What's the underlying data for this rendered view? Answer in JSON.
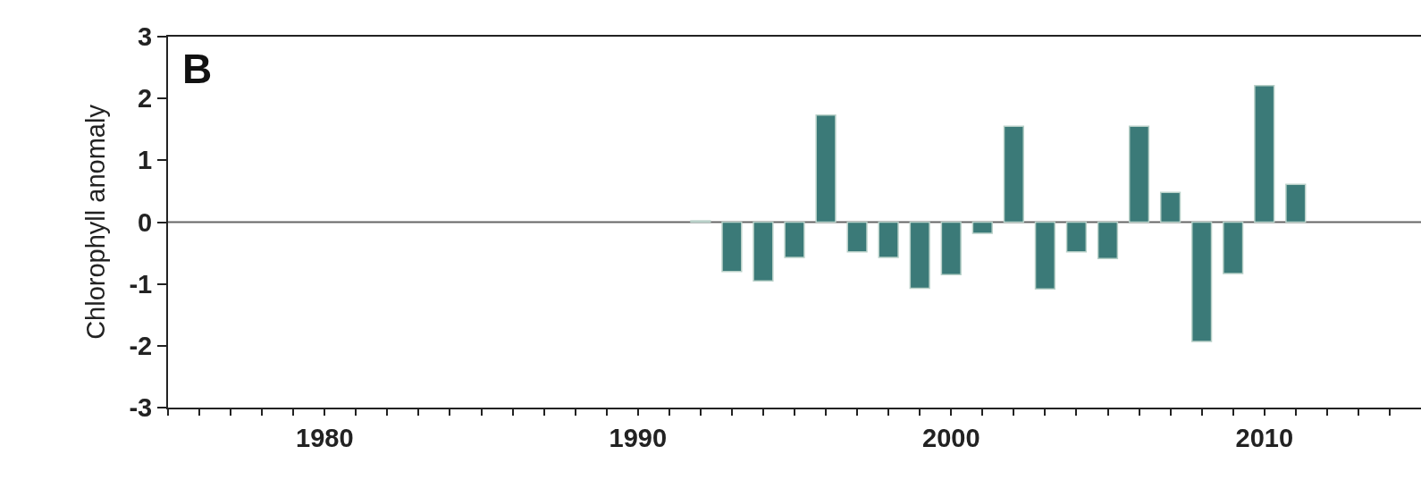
{
  "chart_data": {
    "type": "bar",
    "ylabel": "Chlorophyll anomaly",
    "annotations": [
      "B"
    ],
    "x": [
      1992,
      1993,
      1994,
      1995,
      1996,
      1997,
      1998,
      1999,
      2000,
      2001,
      2002,
      2003,
      2004,
      2005,
      2006,
      2007,
      2008,
      2009,
      2010,
      2011
    ],
    "values": [
      0.02,
      -0.8,
      -0.95,
      -0.57,
      1.73,
      -0.48,
      -0.57,
      -1.07,
      -0.85,
      -0.18,
      1.55,
      -1.08,
      -0.48,
      -0.59,
      1.55,
      0.48,
      -1.93,
      -0.83,
      2.21,
      0.61
    ],
    "color": "#3b7a78",
    "xlim": [
      1975,
      2015
    ],
    "xticks": [
      {
        "value": 1975,
        "label": null
      },
      {
        "value": 1976,
        "label": null
      },
      {
        "value": 1977,
        "label": null
      },
      {
        "value": 1978,
        "label": null
      },
      {
        "value": 1979,
        "label": null
      },
      1980,
      {
        "value": 1981,
        "label": null
      },
      {
        "value": 1982,
        "label": null
      },
      {
        "value": 1983,
        "label": null
      },
      {
        "value": 1984,
        "label": null
      },
      {
        "value": 1985,
        "label": null
      },
      {
        "value": 1986,
        "label": null
      },
      {
        "value": 1987,
        "label": null
      },
      {
        "value": 1988,
        "label": null
      },
      {
        "value": 1989,
        "label": null
      },
      1990,
      {
        "value": 1991,
        "label": null
      },
      {
        "value": 1992,
        "label": null
      },
      {
        "value": 1993,
        "label": null
      },
      {
        "value": 1994,
        "label": null
      },
      {
        "value": 1995,
        "label": null
      },
      {
        "value": 1996,
        "label": null
      },
      {
        "value": 1997,
        "label": null
      },
      {
        "value": 1998,
        "label": null
      },
      {
        "value": 1999,
        "label": null
      },
      2000,
      {
        "value": 2001,
        "label": null
      },
      {
        "value": 2002,
        "label": null
      },
      {
        "value": 2003,
        "label": null
      },
      {
        "value": 2004,
        "label": null
      },
      {
        "value": 2005,
        "label": null
      },
      {
        "value": 2006,
        "label": null
      },
      {
        "value": 2007,
        "label": null
      },
      {
        "value": 2008,
        "label": null
      },
      {
        "value": 2009,
        "label": null
      },
      2010,
      {
        "value": 2011,
        "label": null
      },
      {
        "value": 2012,
        "label": null
      },
      {
        "value": 2013,
        "label": null
      },
      {
        "value": 2014,
        "label": null
      }
    ],
    "ylim": [
      -3,
      3
    ],
    "yticks": [
      -3,
      -2,
      -1,
      0,
      1,
      2,
      3
    ],
    "ref_lines": [
      {
        "axis": "y",
        "value": 0,
        "color": "#666666"
      }
    ],
    "grid": false
  }
}
